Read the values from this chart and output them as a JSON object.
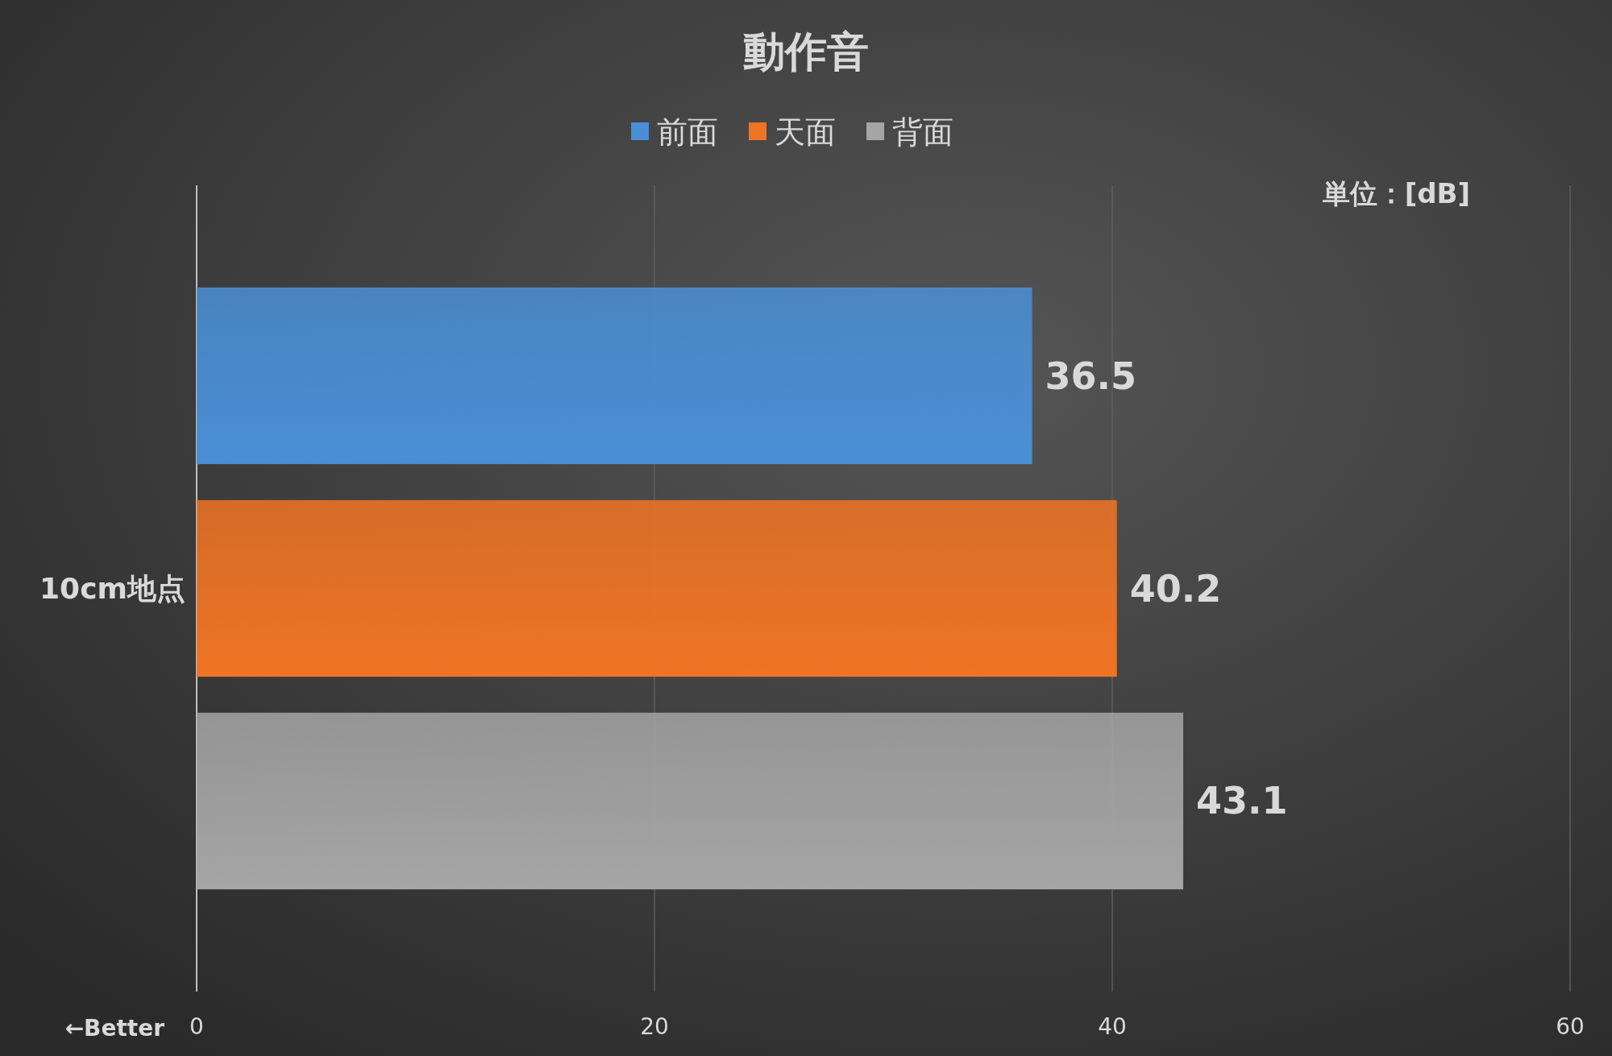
{
  "chart_data": {
    "type": "bar",
    "orientation": "horizontal",
    "title": "動作音",
    "categories": [
      "10cm地点"
    ],
    "series": [
      {
        "name": "前面",
        "color": "#4a8fd6",
        "values": [
          36.5
        ]
      },
      {
        "name": "天面",
        "color": "#ef7424",
        "values": [
          40.2
        ]
      },
      {
        "name": "背面",
        "color": "#a5a5a5",
        "values": [
          43.1
        ]
      }
    ],
    "xlim": [
      0,
      60
    ],
    "xticks": [
      0,
      20,
      40,
      60
    ],
    "grid": "x",
    "legend": "top",
    "data_labels": true,
    "annotations": [
      "単位：[dB]",
      "←Better"
    ]
  }
}
